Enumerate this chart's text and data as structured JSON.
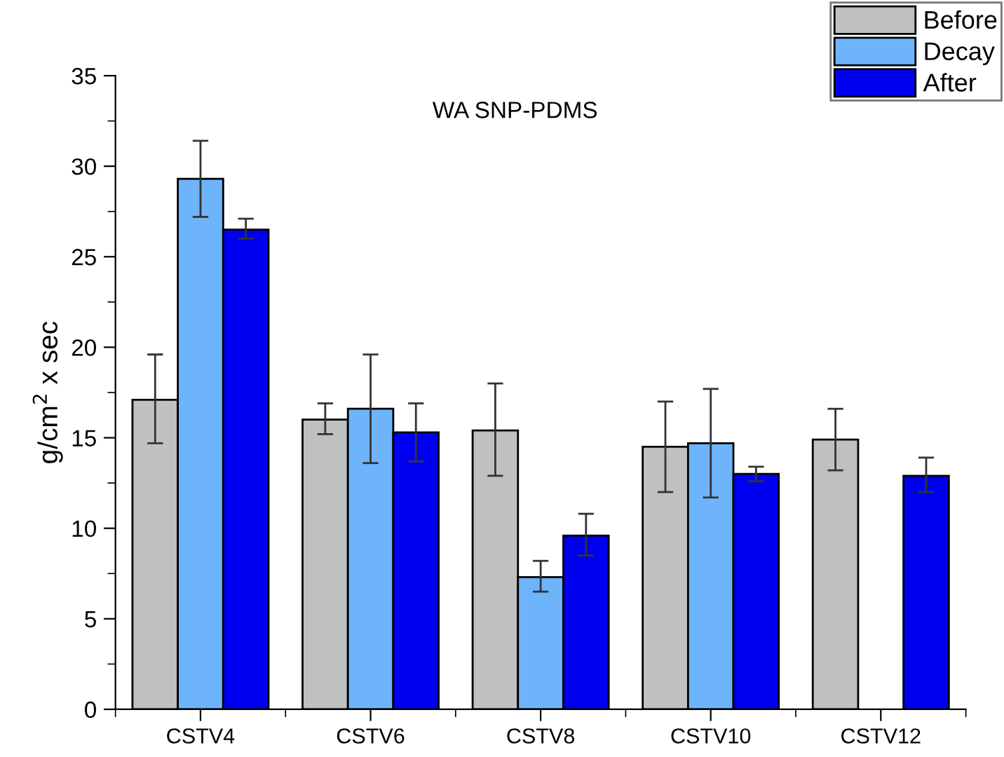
{
  "chart_data": {
    "type": "bar",
    "title": "WA SNP-PDMS",
    "ylabel": "g/cm$^{2}$ x sec",
    "categories": [
      "CSTV4",
      "CSTV6",
      "CSTV8",
      "CSTV10",
      "CSTV12"
    ],
    "series": [
      {
        "name": "Before",
        "color": "#c0c0c0",
        "values": [
          17.1,
          16.0,
          15.4,
          14.5,
          14.9
        ],
        "errors": [
          [
            14.7,
            19.6
          ],
          [
            15.2,
            16.9
          ],
          [
            12.9,
            18.0
          ],
          [
            12.0,
            17.0
          ],
          [
            13.2,
            16.6
          ]
        ]
      },
      {
        "name": "Decay",
        "color": "#6eb4fa",
        "values": [
          29.3,
          16.6,
          7.3,
          14.7,
          null
        ],
        "errors": [
          [
            27.2,
            31.4
          ],
          [
            13.6,
            19.6
          ],
          [
            6.5,
            8.2
          ],
          [
            11.7,
            17.7
          ],
          null
        ]
      },
      {
        "name": "After",
        "color": "#0000f0",
        "values": [
          26.5,
          15.3,
          9.6,
          13.0,
          12.9
        ],
        "errors": [
          [
            26.0,
            27.1
          ],
          [
            13.7,
            16.9
          ],
          [
            8.5,
            10.8
          ],
          [
            12.6,
            13.4
          ],
          [
            12.0,
            13.9
          ]
        ]
      }
    ],
    "ylim": [
      0,
      35
    ],
    "yticks": [
      0,
      5,
      10,
      15,
      20,
      25,
      30,
      35
    ],
    "grid": false,
    "legend": "top right"
  }
}
